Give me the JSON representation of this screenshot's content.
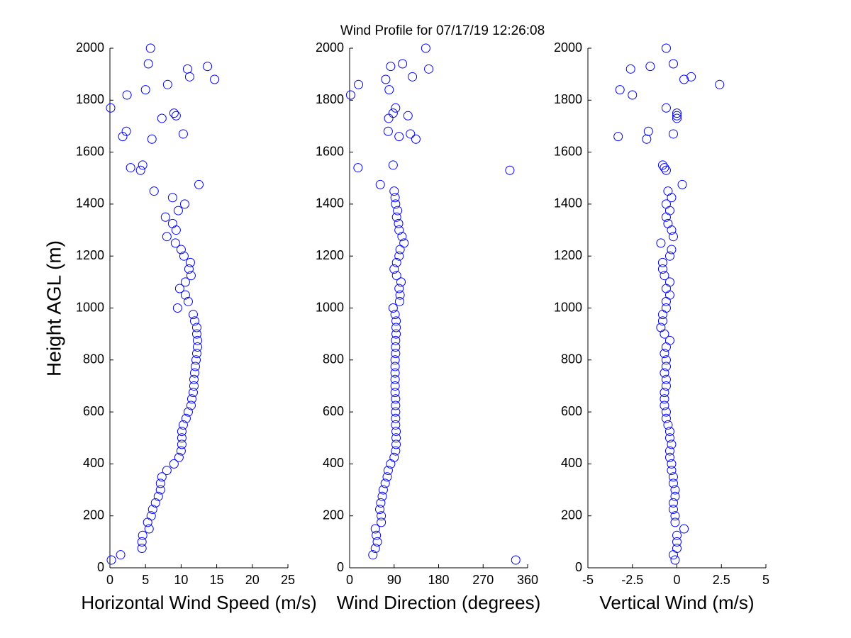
{
  "title": "Wind Profile for  07/17/19 12:26:08",
  "chart_data": [
    {
      "type": "scatter",
      "y_label": "Height AGL (m)",
      "x_label": "Horizontal Wind Speed (m/s)",
      "color": "#0000ff",
      "xlim": [
        0,
        25
      ],
      "xticks": [
        0,
        5,
        10,
        15,
        20,
        25
      ],
      "ylim": [
        0,
        2000
      ],
      "yticks": [
        0,
        200,
        400,
        600,
        800,
        1000,
        1200,
        1400,
        1600,
        1800,
        2000
      ],
      "y": [
        30,
        50,
        75,
        100,
        125,
        150,
        175,
        200,
        225,
        250,
        275,
        300,
        325,
        350,
        375,
        400,
        425,
        450,
        475,
        500,
        525,
        550,
        575,
        600,
        625,
        650,
        675,
        700,
        725,
        750,
        775,
        800,
        825,
        850,
        875,
        900,
        925,
        950,
        975,
        1000,
        1025,
        1050,
        1075,
        1100,
        1125,
        1150,
        1175,
        1200,
        1225,
        1250,
        1275,
        1300,
        1325,
        1350,
        1375,
        1400,
        1425,
        1450,
        1475,
        1530,
        1540,
        1550,
        1650,
        1660,
        1670,
        1680,
        1730,
        1740,
        1750,
        1770,
        1820,
        1840,
        1860,
        1880,
        1890,
        1920,
        1930,
        1940,
        2000
      ],
      "x": [
        0.2,
        1.5,
        4.5,
        4.5,
        4.6,
        5.5,
        5.3,
        5.8,
        6.0,
        6.4,
        6.8,
        7.1,
        7.1,
        7.3,
        8.0,
        9.0,
        9.7,
        10.0,
        10.1,
        10.1,
        10.1,
        10.3,
        10.7,
        11.0,
        11.4,
        11.5,
        11.7,
        11.8,
        11.8,
        11.9,
        12.0,
        12.1,
        12.2,
        12.3,
        12.3,
        12.2,
        12.2,
        11.9,
        11.7,
        9.5,
        11.0,
        10.6,
        9.8,
        10.6,
        11.4,
        11.1,
        11.3,
        10.4,
        10.0,
        9.2,
        8.0,
        9.3,
        8.8,
        7.8,
        9.6,
        10.5,
        8.8,
        6.2,
        12.5,
        4.3,
        2.9,
        4.6,
        5.9,
        1.8,
        10.3,
        2.3,
        7.3,
        9.3,
        9.0,
        0.1,
        2.4,
        5.0,
        8.1,
        14.7,
        11.2,
        10.9,
        13.7,
        5.4,
        5.7
      ]
    },
    {
      "type": "scatter",
      "x_label": "Wind Direction (degrees)",
      "color": "#0000ff",
      "xlim": [
        0,
        360
      ],
      "xticks": [
        0,
        90,
        180,
        270,
        360
      ],
      "ylim": [
        0,
        2000
      ],
      "yticks": [
        0,
        200,
        400,
        600,
        800,
        1000,
        1200,
        1400,
        1600,
        1800,
        2000
      ],
      "y": [
        30,
        50,
        75,
        100,
        125,
        150,
        175,
        200,
        225,
        250,
        275,
        300,
        325,
        350,
        375,
        400,
        425,
        450,
        475,
        500,
        525,
        550,
        575,
        600,
        625,
        650,
        675,
        700,
        725,
        750,
        775,
        800,
        825,
        850,
        875,
        900,
        925,
        950,
        975,
        1000,
        1025,
        1050,
        1075,
        1100,
        1125,
        1150,
        1175,
        1200,
        1225,
        1250,
        1275,
        1300,
        1325,
        1350,
        1375,
        1400,
        1425,
        1450,
        1475,
        1530,
        1540,
        1550,
        1650,
        1660,
        1670,
        1680,
        1730,
        1740,
        1750,
        1770,
        1820,
        1840,
        1860,
        1880,
        1890,
        1920,
        1930,
        1940,
        2000
      ],
      "x": [
        336,
        47,
        52,
        56,
        54,
        52,
        64,
        64,
        61,
        63,
        66,
        68,
        72,
        76,
        78,
        83,
        90,
        93,
        94,
        94,
        94,
        93,
        93,
        93,
        93,
        93,
        92,
        92,
        92,
        92,
        92,
        92,
        93,
        93,
        93,
        94,
        94,
        94,
        92,
        88,
        101,
        102,
        100,
        104,
        95,
        90,
        95,
        100,
        102,
        110,
        106,
        100,
        99,
        95,
        97,
        93,
        92,
        90,
        62,
        324,
        17,
        88,
        134,
        100,
        123,
        78,
        79,
        118,
        88,
        93,
        2,
        80,
        18,
        73,
        127,
        160,
        83,
        107,
        154
      ]
    },
    {
      "type": "scatter",
      "x_label": "Vertical Wind (m/s)",
      "color": "#0000ff",
      "xlim": [
        -5,
        5
      ],
      "xticks": [
        -5,
        -2.5,
        0,
        2.5,
        5
      ],
      "ylim": [
        0,
        2000
      ],
      "yticks": [
        0,
        200,
        400,
        600,
        800,
        1000,
        1200,
        1400,
        1600,
        1800,
        2000
      ],
      "y": [
        30,
        50,
        75,
        100,
        125,
        150,
        175,
        200,
        225,
        250,
        275,
        300,
        325,
        350,
        375,
        400,
        425,
        450,
        475,
        500,
        525,
        550,
        575,
        600,
        625,
        650,
        675,
        700,
        725,
        750,
        775,
        800,
        825,
        850,
        875,
        900,
        925,
        950,
        975,
        1000,
        1025,
        1050,
        1075,
        1100,
        1125,
        1150,
        1175,
        1200,
        1225,
        1250,
        1275,
        1300,
        1325,
        1350,
        1375,
        1400,
        1425,
        1450,
        1475,
        1530,
        1540,
        1550,
        1650,
        1660,
        1670,
        1680,
        1730,
        1740,
        1750,
        1770,
        1820,
        1840,
        1860,
        1880,
        1890,
        1920,
        1930,
        1940,
        2000
      ],
      "x": [
        -0.1,
        -0.2,
        0.0,
        0.0,
        0.0,
        0.4,
        -0.1,
        -0.1,
        -0.2,
        -0.2,
        -0.1,
        -0.1,
        -0.2,
        -0.2,
        -0.3,
        -0.3,
        -0.4,
        -0.4,
        -0.3,
        -0.4,
        -0.4,
        -0.5,
        -0.6,
        -0.6,
        -0.7,
        -0.7,
        -0.7,
        -0.6,
        -0.6,
        -0.7,
        -0.6,
        -0.6,
        -0.7,
        -0.6,
        -0.4,
        -0.7,
        -0.9,
        -0.8,
        -0.8,
        -0.6,
        -0.6,
        -0.4,
        -0.6,
        -0.4,
        -0.7,
        -0.8,
        -0.8,
        -0.4,
        -0.3,
        -0.9,
        -0.2,
        -0.3,
        -0.5,
        -0.6,
        -0.4,
        -0.6,
        -0.3,
        -0.5,
        0.3,
        -0.6,
        -0.7,
        -0.8,
        -1.7,
        -3.3,
        -0.2,
        -1.6,
        0.0,
        0.0,
        0.0,
        -0.6,
        -2.5,
        -3.2,
        2.4,
        0.4,
        0.8,
        -2.6,
        -1.5,
        -0.2,
        -0.6
      ]
    }
  ]
}
